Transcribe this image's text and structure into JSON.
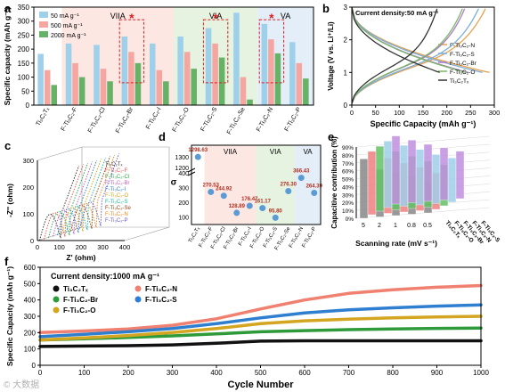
{
  "watermark": "© 大数据",
  "chart_data": [
    {
      "panel": "a",
      "type": "bar",
      "ylabel": "Specific capacity (mAh g⁻¹)",
      "ylim": [
        0,
        350
      ],
      "yticks": [
        0,
        50,
        100,
        150,
        200,
        250,
        300,
        350
      ],
      "categories": [
        "Ti₃C₂Tₓ",
        "F-Ti₃C₂-F",
        "F-Ti₃C₂-Cl",
        "F-Ti₃C₂-Br",
        "F-Ti₃C₂-I",
        "F-Ti₃C₂-O",
        "F-Ti₃C₂-S",
        "F-Ti₃C₂-Se",
        "F-Ti₃C₂-N",
        "F-Ti₃C₂-P"
      ],
      "groups": [
        "VIIA",
        "VIA",
        "VA"
      ],
      "series": [
        {
          "name": "50 mA g⁻¹",
          "color": "#9fd0ea",
          "values": [
            183,
            220,
            215,
            245,
            220,
            245,
            275,
            330,
            290,
            225
          ]
        },
        {
          "name": "500 mA g⁻¹",
          "color": "#f5a6a0",
          "values": [
            125,
            150,
            130,
            190,
            125,
            190,
            220,
            100,
            235,
            150
          ]
        },
        {
          "name": "2000 mA g⁻¹",
          "color": "#66b266",
          "values": [
            72,
            100,
            85,
            150,
            85,
            130,
            170,
            20,
            185,
            95
          ]
        }
      ],
      "highlight_marks": [
        "*",
        "*",
        "*"
      ]
    },
    {
      "panel": "b",
      "type": "line",
      "title": "Current density:50 mA g⁻¹",
      "xlabel": "Specific Capacity (mAh g⁻¹)",
      "ylabel": "Voltage (V vs. Li⁺/Li)",
      "xlim": [
        0,
        300
      ],
      "ylim": [
        0,
        3
      ],
      "xticks": [
        0,
        50,
        100,
        150,
        200,
        250,
        300
      ],
      "yticks": [
        0,
        1,
        2,
        3
      ],
      "series": [
        {
          "name": "F-Ti₃C₂-N",
          "color": "#e8a04c",
          "capacity": 290
        },
        {
          "name": "F-Ti₃C₂-S",
          "color": "#7aaed6",
          "capacity": 275
        },
        {
          "name": "F-Ti₃C₂-Br",
          "color": "#b07ac8",
          "capacity": 245
        },
        {
          "name": "F-Ti₃C₂-O",
          "color": "#79b866",
          "capacity": 240
        },
        {
          "name": "Ti₃C₂Tₓ",
          "color": "#333333",
          "capacity": 185
        }
      ]
    },
    {
      "panel": "c",
      "type": "line",
      "xlabel": "Z' (ohm)",
      "ylabel": "-Z'' (ohm)",
      "xlim": [
        0,
        400
      ],
      "ylim": [
        0,
        300
      ],
      "xticks": [
        0,
        100,
        200,
        300,
        400
      ],
      "yticks": [
        0,
        100,
        200,
        300
      ],
      "series_names": [
        "Ti₃C₂Tₓ",
        "F-Ti₃C₂-F",
        "F-Ti₃C₂-Cl",
        "F-Ti₃C₂-Br",
        "F-Ti₃C₂-I",
        "F-Ti₃C₂-O",
        "F-Ti₃C₂-S",
        "F-Ti₃C₂-Se",
        "F-Ti₃C₂-N",
        "F-Ti₃C₂-P"
      ]
    },
    {
      "panel": "d",
      "type": "scatter",
      "ylabel": "σ",
      "ylim": [
        50,
        1350
      ],
      "yticks": [
        100,
        200,
        300,
        400,
        1200,
        1300
      ],
      "groups": [
        "VIIA",
        "VIA",
        "VA"
      ],
      "categories": [
        "Ti₃C₂Tₓ",
        "F-Ti₃C₂-F",
        "F-Ti₃C₂-Cl",
        "F-Ti₃C₂-Br",
        "F-Ti₃C₂-I",
        "F-Ti₃C₂-O",
        "F-Ti₃C₂-S",
        "F-Ti₃C₂-Se",
        "F-Ti₃C₂-N",
        "F-Ti₃C₂-P"
      ],
      "values": [
        1298.63,
        270.53,
        244.92,
        128.89,
        176.47,
        161.17,
        95.8,
        276.3,
        366.43,
        264.39
      ],
      "labels": [
        "1298.63",
        "270.53",
        "244.92",
        "128.89",
        "176.47",
        "161.17",
        "95.80",
        "276.30",
        "366.43",
        "264.39"
      ]
    },
    {
      "panel": "e",
      "type": "bar",
      "xlabel": "Scanning rate (mV s⁻¹)",
      "ylabel": "Capacitive contribution (%)",
      "ylim": [
        0,
        90
      ],
      "yticks": [
        "0%",
        "10%",
        "20%",
        "30%",
        "40%",
        "50%",
        "60%",
        "70%",
        "80%",
        "90%"
      ],
      "categories": [
        "5",
        "2",
        "1",
        "0.8",
        "0.5"
      ],
      "series": [
        {
          "name": "Ti₃C₂Tₓ",
          "color": "#888888",
          "values": [
            75,
            60,
            55,
            48,
            40
          ]
        },
        {
          "name": "F-Ti₃C₂-O",
          "color": "#f08080",
          "values": [
            80,
            70,
            62,
            55,
            46
          ]
        },
        {
          "name": "F-Ti₃C₂-Br",
          "color": "#66c266",
          "values": [
            82,
            74,
            66,
            58,
            52
          ]
        },
        {
          "name": "F-Ti₃C₂-N",
          "color": "#9fd0ea",
          "values": [
            84,
            77,
            70,
            62,
            56
          ]
        },
        {
          "name": "F-Ti₃C₂-S",
          "color": "#c090e0",
          "values": [
            86,
            79,
            72,
            66,
            60
          ]
        }
      ]
    },
    {
      "panel": "f",
      "type": "scatter",
      "title": "Current density:1000 mA g⁻¹",
      "xlabel": "Cycle Number",
      "ylabel": "Specific Capacity (mAh g⁻¹)",
      "xlim": [
        0,
        1000
      ],
      "ylim": [
        0,
        600
      ],
      "xticks": [
        0,
        100,
        200,
        300,
        400,
        500,
        600,
        700,
        800,
        900,
        1000
      ],
      "yticks": [
        0,
        100,
        200,
        300,
        400,
        500,
        600
      ],
      "x": [
        0,
        100,
        200,
        300,
        400,
        500,
        600,
        700,
        800,
        900,
        1000
      ],
      "series": [
        {
          "name": "Ti₃C₂Tₓ",
          "color": "#111111",
          "values": [
            115,
            118,
            120,
            125,
            135,
            148,
            150,
            150,
            150,
            150,
            150
          ]
        },
        {
          "name": "F-Ti₃C₂-N",
          "color": "#f08070",
          "values": [
            200,
            210,
            222,
            245,
            285,
            345,
            400,
            440,
            462,
            478,
            488
          ]
        },
        {
          "name": "F-Ti₃C₂-Br",
          "color": "#2e9a3a",
          "values": [
            155,
            162,
            170,
            180,
            192,
            205,
            212,
            218,
            222,
            226,
            228
          ]
        },
        {
          "name": "F-Ti₃C₂-S",
          "color": "#2f7fd0",
          "values": [
            175,
            190,
            205,
            225,
            255,
            290,
            320,
            340,
            352,
            362,
            370
          ]
        },
        {
          "name": "F-Ti₃C₂-O",
          "color": "#d4a520",
          "values": [
            155,
            168,
            182,
            200,
            225,
            255,
            272,
            282,
            290,
            296,
            300
          ]
        }
      ]
    }
  ]
}
